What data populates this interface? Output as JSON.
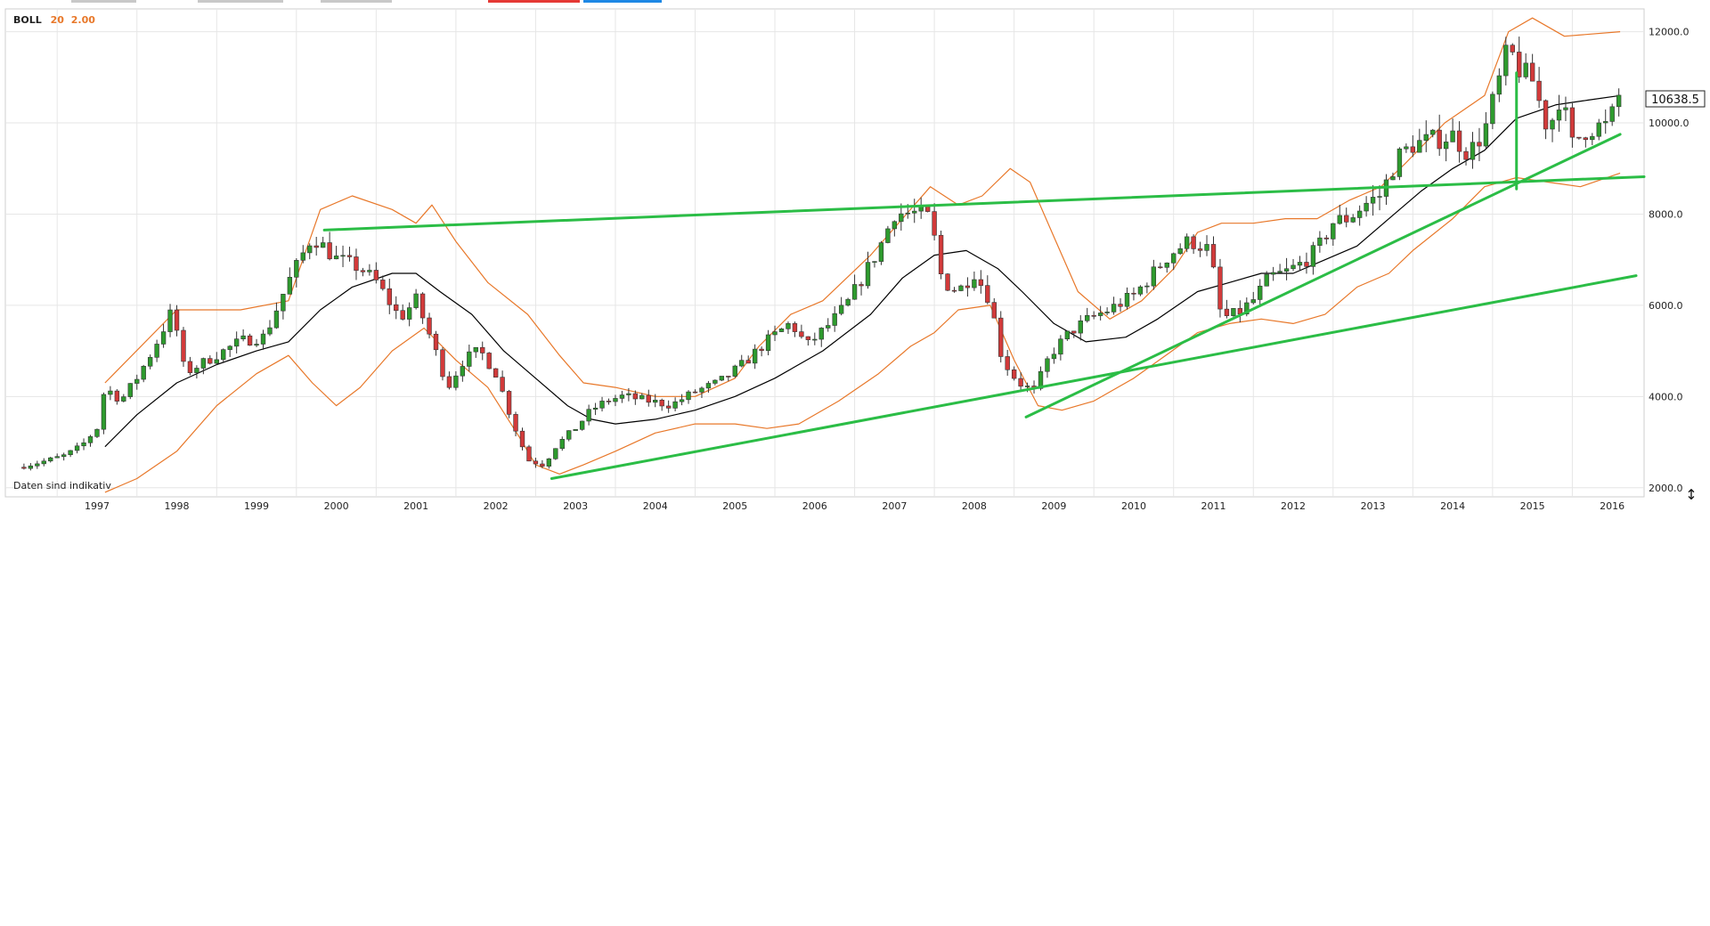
{
  "indicator": {
    "name": "BOLL",
    "period": "20",
    "stddev": "2.00"
  },
  "note": "Daten sind indikativ",
  "last_price_label": "10638.5",
  "resize_glyph": "↕",
  "colors": {
    "up_candle": "#2e9b2e",
    "down_candle": "#d23a3a",
    "bollinger_band": "#e8782a",
    "bollinger_mid": "#000000",
    "trendline": "#2bbd46",
    "grid": "#e6e6e6",
    "axis_text": "#222222",
    "indicator_value": "#e8782a"
  },
  "toolbar_tabs": [
    {
      "name": "tab-a",
      "color": "#c8c8c8"
    },
    {
      "name": "tab-b",
      "color": "#c8c8c8"
    },
    {
      "name": "tab-c",
      "color": "#c8c8c8"
    },
    {
      "name": "tab-red",
      "color": "#e53935"
    },
    {
      "name": "tab-blue",
      "color": "#1e88e5"
    }
  ],
  "chart_data": {
    "type": "candlestick",
    "indicator": "Bollinger Bands (20, 2.00)",
    "x_axis_labels": [
      "1997",
      "1998",
      "1999",
      "2000",
      "2001",
      "2002",
      "2003",
      "2004",
      "2005",
      "2006",
      "2007",
      "2008",
      "2009",
      "2010",
      "2011",
      "2012",
      "2013",
      "2014",
      "2015",
      "2016"
    ],
    "y_axis_labels": [
      "2000.0",
      "4000.0",
      "6000.0",
      "8000.0",
      "10000.0",
      "12000.0"
    ],
    "ylim": [
      1800,
      12500
    ],
    "xlim": [
      1996.35,
      2016.9
    ],
    "grid": true,
    "last_value": 10638.5,
    "close_series": [
      [
        1996.5,
        2450
      ],
      [
        1996.7,
        2520
      ],
      [
        1996.9,
        2600
      ],
      [
        1997.1,
        2700
      ],
      [
        1997.3,
        2900
      ],
      [
        1997.5,
        3300
      ],
      [
        1997.6,
        4200
      ],
      [
        1997.8,
        3900
      ],
      [
        1998.0,
        4400
      ],
      [
        1998.2,
        5000
      ],
      [
        1998.45,
        5900
      ],
      [
        1998.6,
        4500
      ],
      [
        1998.8,
        4700
      ],
      [
        1999.0,
        4900
      ],
      [
        1999.3,
        5200
      ],
      [
        1999.6,
        5300
      ],
      [
        1999.9,
        6500
      ],
      [
        2000.2,
        7500
      ],
      [
        2000.5,
        7000
      ],
      [
        2000.8,
        6800
      ],
      [
        2001.0,
        6500
      ],
      [
        2001.3,
        5700
      ],
      [
        2001.5,
        6100
      ],
      [
        2001.7,
        5200
      ],
      [
        2001.9,
        4200
      ],
      [
        2002.1,
        4800
      ],
      [
        2002.3,
        5000
      ],
      [
        2002.5,
        4500
      ],
      [
        2002.7,
        3500
      ],
      [
        2002.9,
        2600
      ],
      [
        2003.1,
        2500
      ],
      [
        2003.25,
        2900
      ],
      [
        2003.5,
        3300
      ],
      [
        2003.7,
        3700
      ],
      [
        2003.9,
        3900
      ],
      [
        2004.1,
        4000
      ],
      [
        2004.4,
        3900
      ],
      [
        2004.7,
        3800
      ],
      [
        2005.0,
        4100
      ],
      [
        2005.3,
        4300
      ],
      [
        2005.6,
        4700
      ],
      [
        2005.9,
        5200
      ],
      [
        2006.2,
        5600
      ],
      [
        2006.4,
        5100
      ],
      [
        2006.7,
        5600
      ],
      [
        2006.9,
        6000
      ],
      [
        2007.1,
        6600
      ],
      [
        2007.3,
        7200
      ],
      [
        2007.5,
        8000
      ],
      [
        2007.75,
        8000
      ],
      [
        2007.95,
        7900
      ],
      [
        2008.1,
        6500
      ],
      [
        2008.3,
        6300
      ],
      [
        2008.5,
        6700
      ],
      [
        2008.7,
        6100
      ],
      [
        2008.85,
        4800
      ],
      [
        2009.05,
        4300
      ],
      [
        2009.25,
        4100
      ],
      [
        2009.45,
        4900
      ],
      [
        2009.7,
        5400
      ],
      [
        2009.95,
        5700
      ],
      [
        2010.2,
        5900
      ],
      [
        2010.5,
        6200
      ],
      [
        2010.75,
        6700
      ],
      [
        2010.95,
        7100
      ],
      [
        2011.2,
        7400
      ],
      [
        2011.45,
        7200
      ],
      [
        2011.6,
        5700
      ],
      [
        2011.8,
        5800
      ],
      [
        2012.0,
        6100
      ],
      [
        2012.2,
        6600
      ],
      [
        2012.4,
        6700
      ],
      [
        2012.6,
        6900
      ],
      [
        2012.8,
        7200
      ],
      [
        2013.0,
        7800
      ],
      [
        2013.2,
        7900
      ],
      [
        2013.4,
        8200
      ],
      [
        2013.6,
        8400
      ],
      [
        2013.8,
        9200
      ],
      [
        2014.0,
        9500
      ],
      [
        2014.25,
        9600
      ],
      [
        2014.5,
        9700
      ],
      [
        2014.7,
        9300
      ],
      [
        2014.9,
        9800
      ],
      [
        2015.05,
        10700
      ],
      [
        2015.2,
        11600
      ],
      [
        2015.35,
        11100
      ],
      [
        2015.5,
        10900
      ],
      [
        2015.7,
        9800
      ],
      [
        2015.85,
        10600
      ],
      [
        2016.0,
        9500
      ],
      [
        2016.15,
        9800
      ],
      [
        2016.3,
        9900
      ],
      [
        2016.45,
        9900
      ],
      [
        2016.6,
        10638.5
      ]
    ],
    "bollinger_upper": [
      [
        1997.6,
        4300
      ],
      [
        1998.5,
        5900
      ],
      [
        1999.3,
        5900
      ],
      [
        1999.9,
        6100
      ],
      [
        2000.3,
        8100
      ],
      [
        2000.7,
        8400
      ],
      [
        2001.2,
        8100
      ],
      [
        2001.5,
        7800
      ],
      [
        2001.7,
        8200
      ],
      [
        2002.0,
        7400
      ],
      [
        2002.4,
        6500
      ],
      [
        2002.9,
        5800
      ],
      [
        2003.3,
        4900
      ],
      [
        2003.6,
        4300
      ],
      [
        2004.0,
        4200
      ],
      [
        2004.5,
        4000
      ],
      [
        2005.0,
        4000
      ],
      [
        2005.5,
        4400
      ],
      [
        2005.8,
        5100
      ],
      [
        2006.2,
        5800
      ],
      [
        2006.6,
        6100
      ],
      [
        2007.2,
        7100
      ],
      [
        2007.6,
        7900
      ],
      [
        2007.95,
        8600
      ],
      [
        2008.3,
        8200
      ],
      [
        2008.6,
        8400
      ],
      [
        2008.95,
        9000
      ],
      [
        2009.2,
        8700
      ],
      [
        2009.5,
        7500
      ],
      [
        2009.8,
        6300
      ],
      [
        2010.2,
        5700
      ],
      [
        2010.6,
        6100
      ],
      [
        2011.0,
        6800
      ],
      [
        2011.3,
        7600
      ],
      [
        2011.6,
        7800
      ],
      [
        2012.0,
        7800
      ],
      [
        2012.4,
        7900
      ],
      [
        2012.8,
        7900
      ],
      [
        2013.2,
        8300
      ],
      [
        2013.6,
        8600
      ],
      [
        2013.9,
        9100
      ],
      [
        2014.4,
        10000
      ],
      [
        2014.9,
        10600
      ],
      [
        2015.2,
        12000
      ],
      [
        2015.5,
        12300
      ],
      [
        2015.9,
        11900
      ],
      [
        2016.6,
        12000
      ]
    ],
    "bollinger_middle": [
      [
        1997.6,
        2900
      ],
      [
        1998.0,
        3600
      ],
      [
        1998.5,
        4300
      ],
      [
        1999.0,
        4700
      ],
      [
        1999.5,
        5000
      ],
      [
        1999.9,
        5200
      ],
      [
        2000.3,
        5900
      ],
      [
        2000.7,
        6400
      ],
      [
        2001.2,
        6700
      ],
      [
        2001.5,
        6700
      ],
      [
        2001.8,
        6300
      ],
      [
        2002.2,
        5800
      ],
      [
        2002.6,
        5000
      ],
      [
        2003.0,
        4400
      ],
      [
        2003.4,
        3800
      ],
      [
        2003.7,
        3500
      ],
      [
        2004.0,
        3400
      ],
      [
        2004.5,
        3500
      ],
      [
        2005.0,
        3700
      ],
      [
        2005.5,
        4000
      ],
      [
        2006.0,
        4400
      ],
      [
        2006.6,
        5000
      ],
      [
        2007.2,
        5800
      ],
      [
        2007.6,
        6600
      ],
      [
        2008.0,
        7100
      ],
      [
        2008.4,
        7200
      ],
      [
        2008.8,
        6800
      ],
      [
        2009.1,
        6300
      ],
      [
        2009.5,
        5600
      ],
      [
        2009.9,
        5200
      ],
      [
        2010.4,
        5300
      ],
      [
        2010.8,
        5700
      ],
      [
        2011.3,
        6300
      ],
      [
        2011.7,
        6500
      ],
      [
        2012.1,
        6700
      ],
      [
        2012.5,
        6700
      ],
      [
        2012.9,
        7000
      ],
      [
        2013.3,
        7300
      ],
      [
        2013.7,
        7900
      ],
      [
        2014.1,
        8500
      ],
      [
        2014.5,
        9000
      ],
      [
        2014.9,
        9400
      ],
      [
        2015.3,
        10100
      ],
      [
        2015.8,
        10400
      ],
      [
        2016.2,
        10500
      ],
      [
        2016.6,
        10600
      ]
    ],
    "bollinger_lower": [
      [
        1997.6,
        1900
      ],
      [
        1998.0,
        2200
      ],
      [
        1998.5,
        2800
      ],
      [
        1999.0,
        3800
      ],
      [
        1999.5,
        4500
      ],
      [
        1999.9,
        4900
      ],
      [
        2000.2,
        4300
      ],
      [
        2000.5,
        3800
      ],
      [
        2000.8,
        4200
      ],
      [
        2001.2,
        5000
      ],
      [
        2001.6,
        5500
      ],
      [
        2002.0,
        4800
      ],
      [
        2002.4,
        4200
      ],
      [
        2002.8,
        3100
      ],
      [
        2003.0,
        2500
      ],
      [
        2003.3,
        2300
      ],
      [
        2003.6,
        2500
      ],
      [
        2004.0,
        2800
      ],
      [
        2004.5,
        3200
      ],
      [
        2005.0,
        3400
      ],
      [
        2005.5,
        3400
      ],
      [
        2005.9,
        3300
      ],
      [
        2006.3,
        3400
      ],
      [
        2006.8,
        3900
      ],
      [
        2007.3,
        4500
      ],
      [
        2007.7,
        5100
      ],
      [
        2008.0,
        5400
      ],
      [
        2008.3,
        5900
      ],
      [
        2008.7,
        6000
      ],
      [
        2009.0,
        4800
      ],
      [
        2009.3,
        3800
      ],
      [
        2009.6,
        3700
      ],
      [
        2010.0,
        3900
      ],
      [
        2010.5,
        4400
      ],
      [
        2010.9,
        4900
      ],
      [
        2011.3,
        5400
      ],
      [
        2011.7,
        5600
      ],
      [
        2012.1,
        5700
      ],
      [
        2012.5,
        5600
      ],
      [
        2012.9,
        5800
      ],
      [
        2013.3,
        6400
      ],
      [
        2013.7,
        6700
      ],
      [
        2014.0,
        7200
      ],
      [
        2014.5,
        7900
      ],
      [
        2014.9,
        8600
      ],
      [
        2015.3,
        8800
      ],
      [
        2015.7,
        8700
      ],
      [
        2016.1,
        8600
      ],
      [
        2016.6,
        8900
      ]
    ],
    "trendlines": [
      {
        "from": [
          2000.35,
          7650
        ],
        "to": [
          2016.9,
          8820
        ]
      },
      {
        "from": [
          2003.2,
          2200
        ],
        "to": [
          2016.8,
          6650
        ]
      },
      {
        "from": [
          2009.15,
          3550
        ],
        "to": [
          2016.6,
          9750
        ]
      },
      {
        "from": [
          2015.3,
          11100
        ],
        "to": [
          2015.3,
          8550
        ]
      }
    ]
  }
}
